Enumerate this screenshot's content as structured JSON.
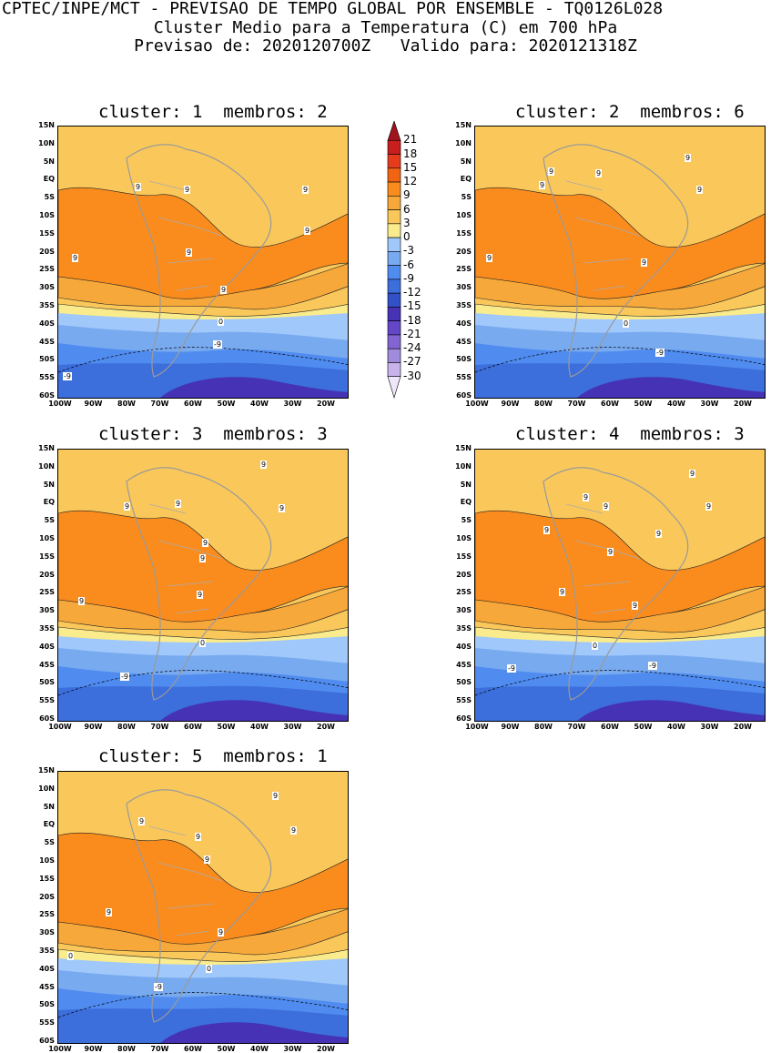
{
  "header": {
    "line1": "CPTEC/INPE/MCT - PREVISAO DE TEMPO GLOBAL POR ENSEMBLE - TQ0126L028",
    "line2": "Cluster Medio para a Temperatura (C) em 700 hPa",
    "line3": "Previsao de: 2020120700Z   Valido para: 2020121318Z"
  },
  "lat_labels": [
    "15N",
    "10N",
    "5N",
    "EQ",
    "5S",
    "10S",
    "15S",
    "20S",
    "25S",
    "30S",
    "35S",
    "40S",
    "45S",
    "50S",
    "55S",
    "60S"
  ],
  "lon_labels": [
    "100W",
    "90W",
    "80W",
    "70W",
    "60W",
    "50W",
    "40W",
    "30W",
    "20W"
  ],
  "colorbar": {
    "labels": [
      "21",
      "18",
      "15",
      "12",
      "9",
      "6",
      "3",
      "0",
      "-3",
      "-6",
      "-9",
      "-12",
      "-15",
      "-18",
      "-21",
      "-24",
      "-27",
      "-30"
    ],
    "colors": [
      "#a0141e",
      "#c81e1e",
      "#e63c1e",
      "#f06414",
      "#fa8c1e",
      "#f7a83a",
      "#fac85a",
      "#faeb8c",
      "#a0c8fa",
      "#78aaf0",
      "#508cf0",
      "#3c6edc",
      "#3250c8",
      "#4632b4",
      "#6446c8",
      "#8264d2",
      "#a08cdc",
      "#c8b4eb",
      "#f0e6fa"
    ]
  },
  "panels": [
    {
      "title": "cluster: 1  membros: 2",
      "labels": [
        {
          "t": "9",
          "x": 138,
          "y": 65
        },
        {
          "t": "9",
          "x": 268,
          "y": 65
        },
        {
          "t": "9",
          "x": 84,
          "y": 62
        },
        {
          "t": "9",
          "x": 15,
          "y": 140
        },
        {
          "t": "9",
          "x": 140,
          "y": 134
        },
        {
          "t": "9",
          "x": 178,
          "y": 175
        },
        {
          "t": "9",
          "x": 270,
          "y": 110
        },
        {
          "t": "0",
          "x": 175,
          "y": 210
        },
        {
          "t": "-9",
          "x": 170,
          "y": 235
        },
        {
          "t": "-9",
          "x": 5,
          "y": 270
        }
      ]
    },
    {
      "title": "cluster: 2  membros: 6",
      "labels": [
        {
          "t": "9",
          "x": 230,
          "y": 30
        },
        {
          "t": "9",
          "x": 80,
          "y": 45
        },
        {
          "t": "9",
          "x": 132,
          "y": 47
        },
        {
          "t": "9",
          "x": 70,
          "y": 60
        },
        {
          "t": "9",
          "x": 243,
          "y": 65
        },
        {
          "t": "9",
          "x": 12,
          "y": 140
        },
        {
          "t": "9",
          "x": 182,
          "y": 145
        },
        {
          "t": "0",
          "x": 162,
          "y": 212
        },
        {
          "t": "-9",
          "x": 198,
          "y": 244
        }
      ]
    },
    {
      "title": "cluster: 3  membros: 3",
      "labels": [
        {
          "t": "9",
          "x": 222,
          "y": 12
        },
        {
          "t": "9",
          "x": 72,
          "y": 58
        },
        {
          "t": "9",
          "x": 128,
          "y": 55
        },
        {
          "t": "9",
          "x": 242,
          "y": 60
        },
        {
          "t": "9",
          "x": 158,
          "y": 98
        },
        {
          "t": "9",
          "x": 155,
          "y": 115
        },
        {
          "t": "9",
          "x": 22,
          "y": 162
        },
        {
          "t": "9",
          "x": 152,
          "y": 155
        },
        {
          "t": "0",
          "x": 155,
          "y": 208
        },
        {
          "t": "-9",
          "x": 68,
          "y": 245
        }
      ]
    },
    {
      "title": "cluster: 4  membros: 3",
      "labels": [
        {
          "t": "9",
          "x": 235,
          "y": 22
        },
        {
          "t": "9",
          "x": 118,
          "y": 48
        },
        {
          "t": "9",
          "x": 140,
          "y": 58
        },
        {
          "t": "9",
          "x": 253,
          "y": 58
        },
        {
          "t": "9",
          "x": 75,
          "y": 84
        },
        {
          "t": "9",
          "x": 198,
          "y": 88
        },
        {
          "t": "9",
          "x": 145,
          "y": 108
        },
        {
          "t": "9",
          "x": 92,
          "y": 152
        },
        {
          "t": "9",
          "x": 172,
          "y": 167
        },
        {
          "t": "0",
          "x": 128,
          "y": 211
        },
        {
          "t": "-9",
          "x": 35,
          "y": 236
        },
        {
          "t": "-9",
          "x": 190,
          "y": 233
        }
      ]
    },
    {
      "title": "cluster: 5  membros: 1",
      "labels": [
        {
          "t": "9",
          "x": 235,
          "y": 22
        },
        {
          "t": "9",
          "x": 88,
          "y": 50
        },
        {
          "t": "9",
          "x": 255,
          "y": 60
        },
        {
          "t": "9",
          "x": 150,
          "y": 67
        },
        {
          "t": "9",
          "x": 160,
          "y": 92
        },
        {
          "t": "9",
          "x": 52,
          "y": 150
        },
        {
          "t": "9",
          "x": 175,
          "y": 172
        },
        {
          "t": "0",
          "x": 10,
          "y": 198
        },
        {
          "t": "0",
          "x": 162,
          "y": 212
        },
        {
          "t": "-9",
          "x": 105,
          "y": 232
        }
      ]
    }
  ]
}
